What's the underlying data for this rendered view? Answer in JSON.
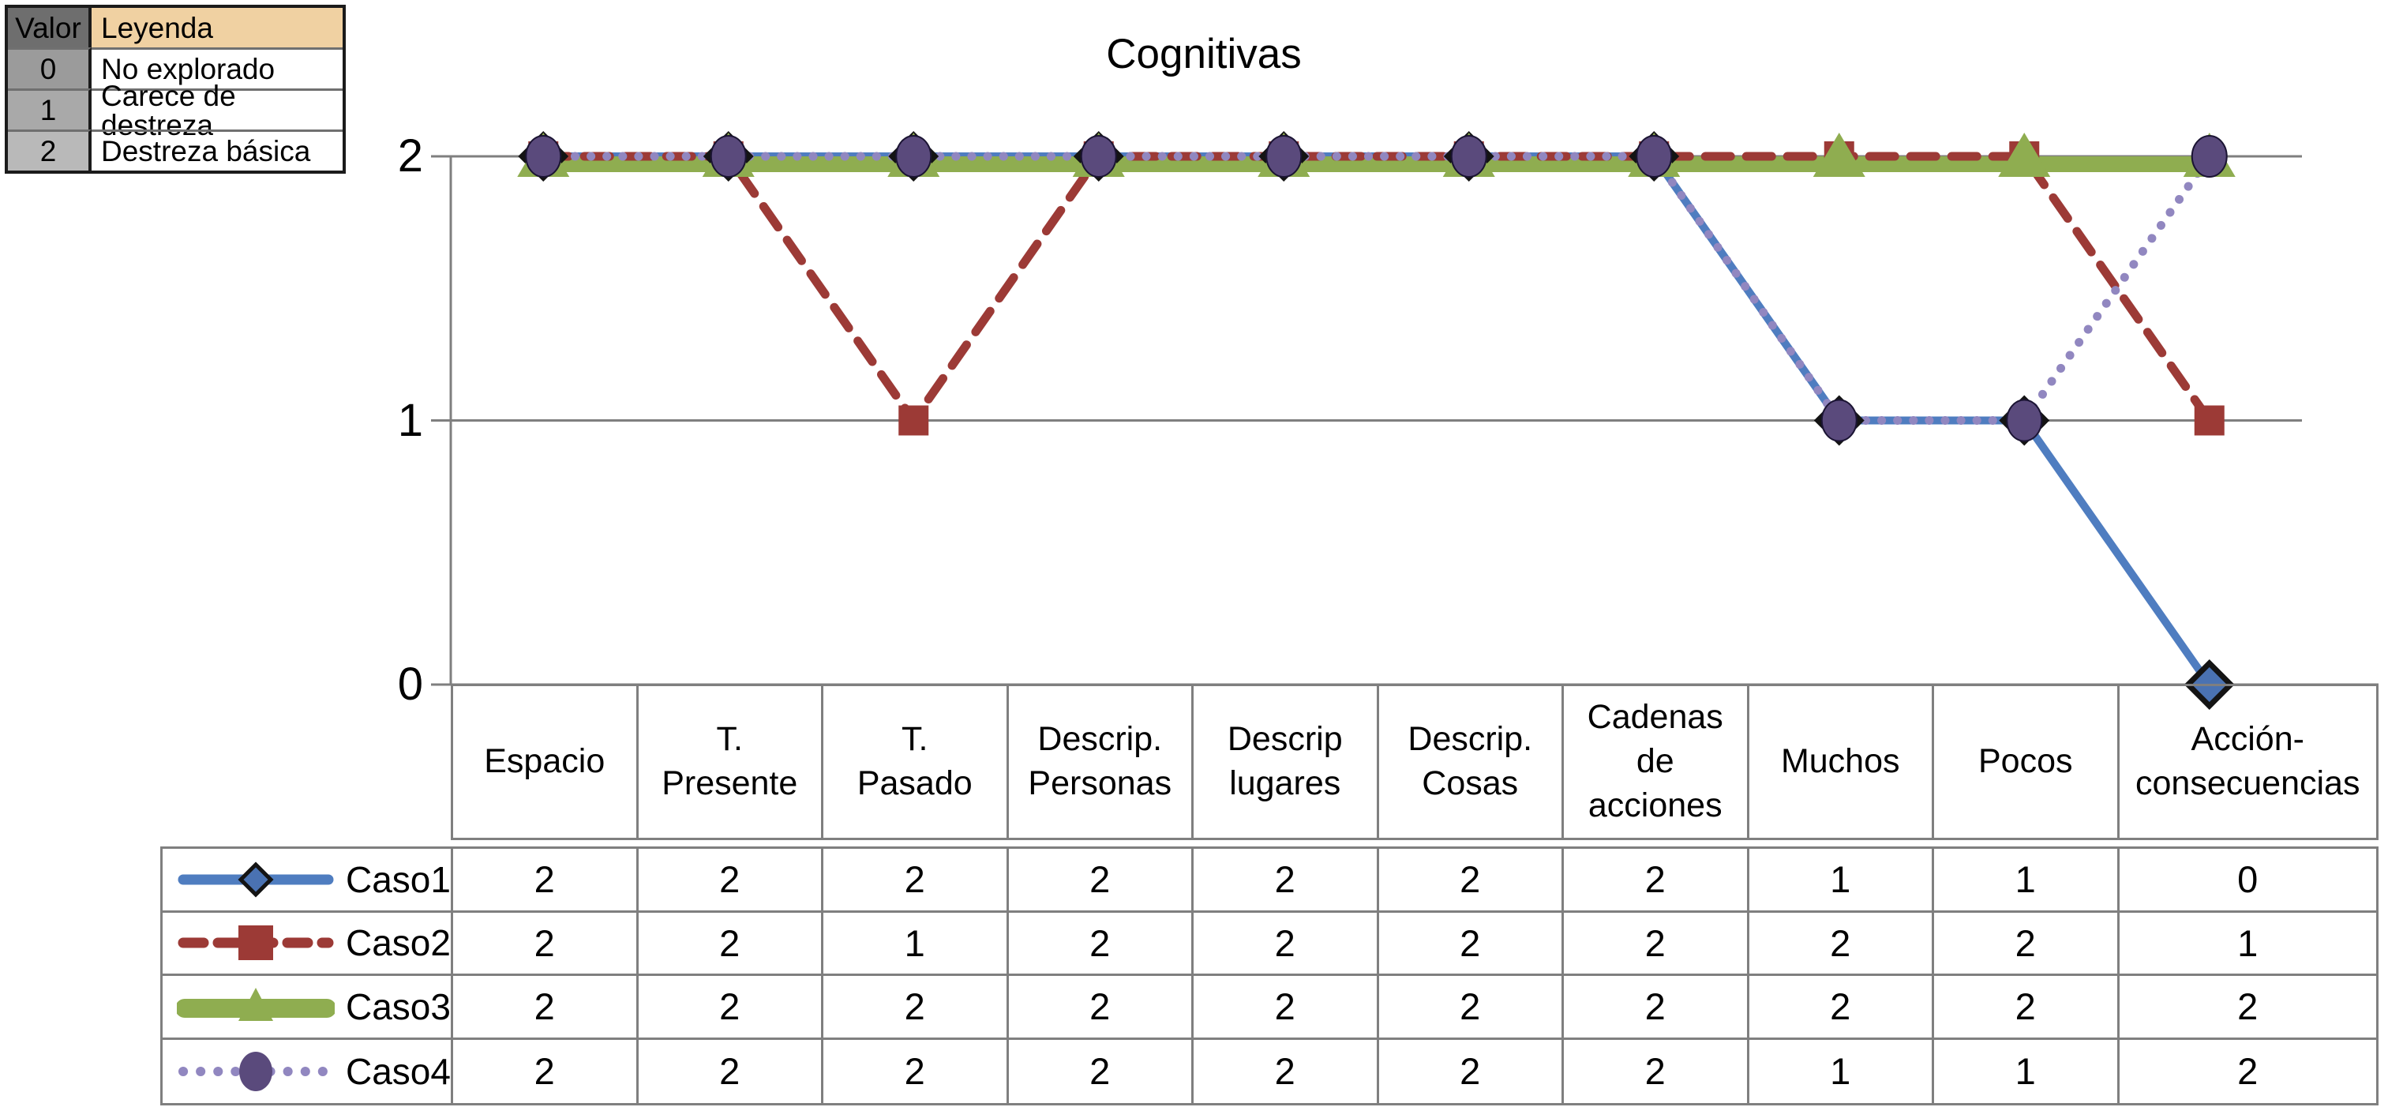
{
  "legend_table": {
    "headers": [
      "Valor",
      "Leyenda"
    ],
    "rows": [
      {
        "valor": "0",
        "leyenda": "No explorado"
      },
      {
        "valor": "1",
        "leyenda": "Carece de destreza"
      },
      {
        "valor": "2",
        "leyenda": "Destreza básica"
      }
    ]
  },
  "chart_data": {
    "type": "line",
    "title": "Cognitivas",
    "categories": [
      "Espacio",
      "T.\nPresente",
      "T.\nPasado",
      "Descrip.\nPersonas",
      "Descrip\nlugares",
      "Descrip.\nCosas",
      "Cadenas\nde\nacciones",
      "Muchos",
      "Pocos",
      "Acción-\nconsecuencias"
    ],
    "series": [
      {
        "name": "Caso1",
        "values": [
          2,
          2,
          2,
          2,
          2,
          2,
          2,
          1,
          1,
          0
        ],
        "color": "#4f7dc0",
        "marker_fill": "#4a72b2",
        "line_style": "solid",
        "marker": "diamond"
      },
      {
        "name": "Caso2",
        "values": [
          2,
          2,
          1,
          2,
          2,
          2,
          2,
          2,
          2,
          1
        ],
        "color": "#9c3a36",
        "marker_fill": "#9c3a36",
        "line_style": "dashed",
        "marker": "square"
      },
      {
        "name": "Caso3",
        "values": [
          2,
          2,
          2,
          2,
          2,
          2,
          2,
          2,
          2,
          2
        ],
        "color": "#8fad50",
        "marker_fill": "#8fad50",
        "line_style": "thick-solid",
        "marker": "triangle"
      },
      {
        "name": "Caso4",
        "values": [
          2,
          2,
          2,
          2,
          2,
          2,
          2,
          1,
          1,
          2
        ],
        "color": "#9187c0",
        "marker_fill": "#5a4a7c",
        "line_style": "dotted",
        "marker": "circle"
      }
    ],
    "yticks": [
      2,
      1,
      0
    ],
    "ylim": [
      0,
      2
    ],
    "grid": true,
    "legend_position": "table-bottom"
  },
  "colors": {
    "grid_line": "#7f7f7f",
    "marker_outline": "#141414",
    "hdr_gray": "#6e6e6e",
    "hdr_tan": "#f0d1a2",
    "gray0": "#9b9b9b",
    "gray1": "#a9a9a9",
    "gray2": "#b9b9b9"
  }
}
